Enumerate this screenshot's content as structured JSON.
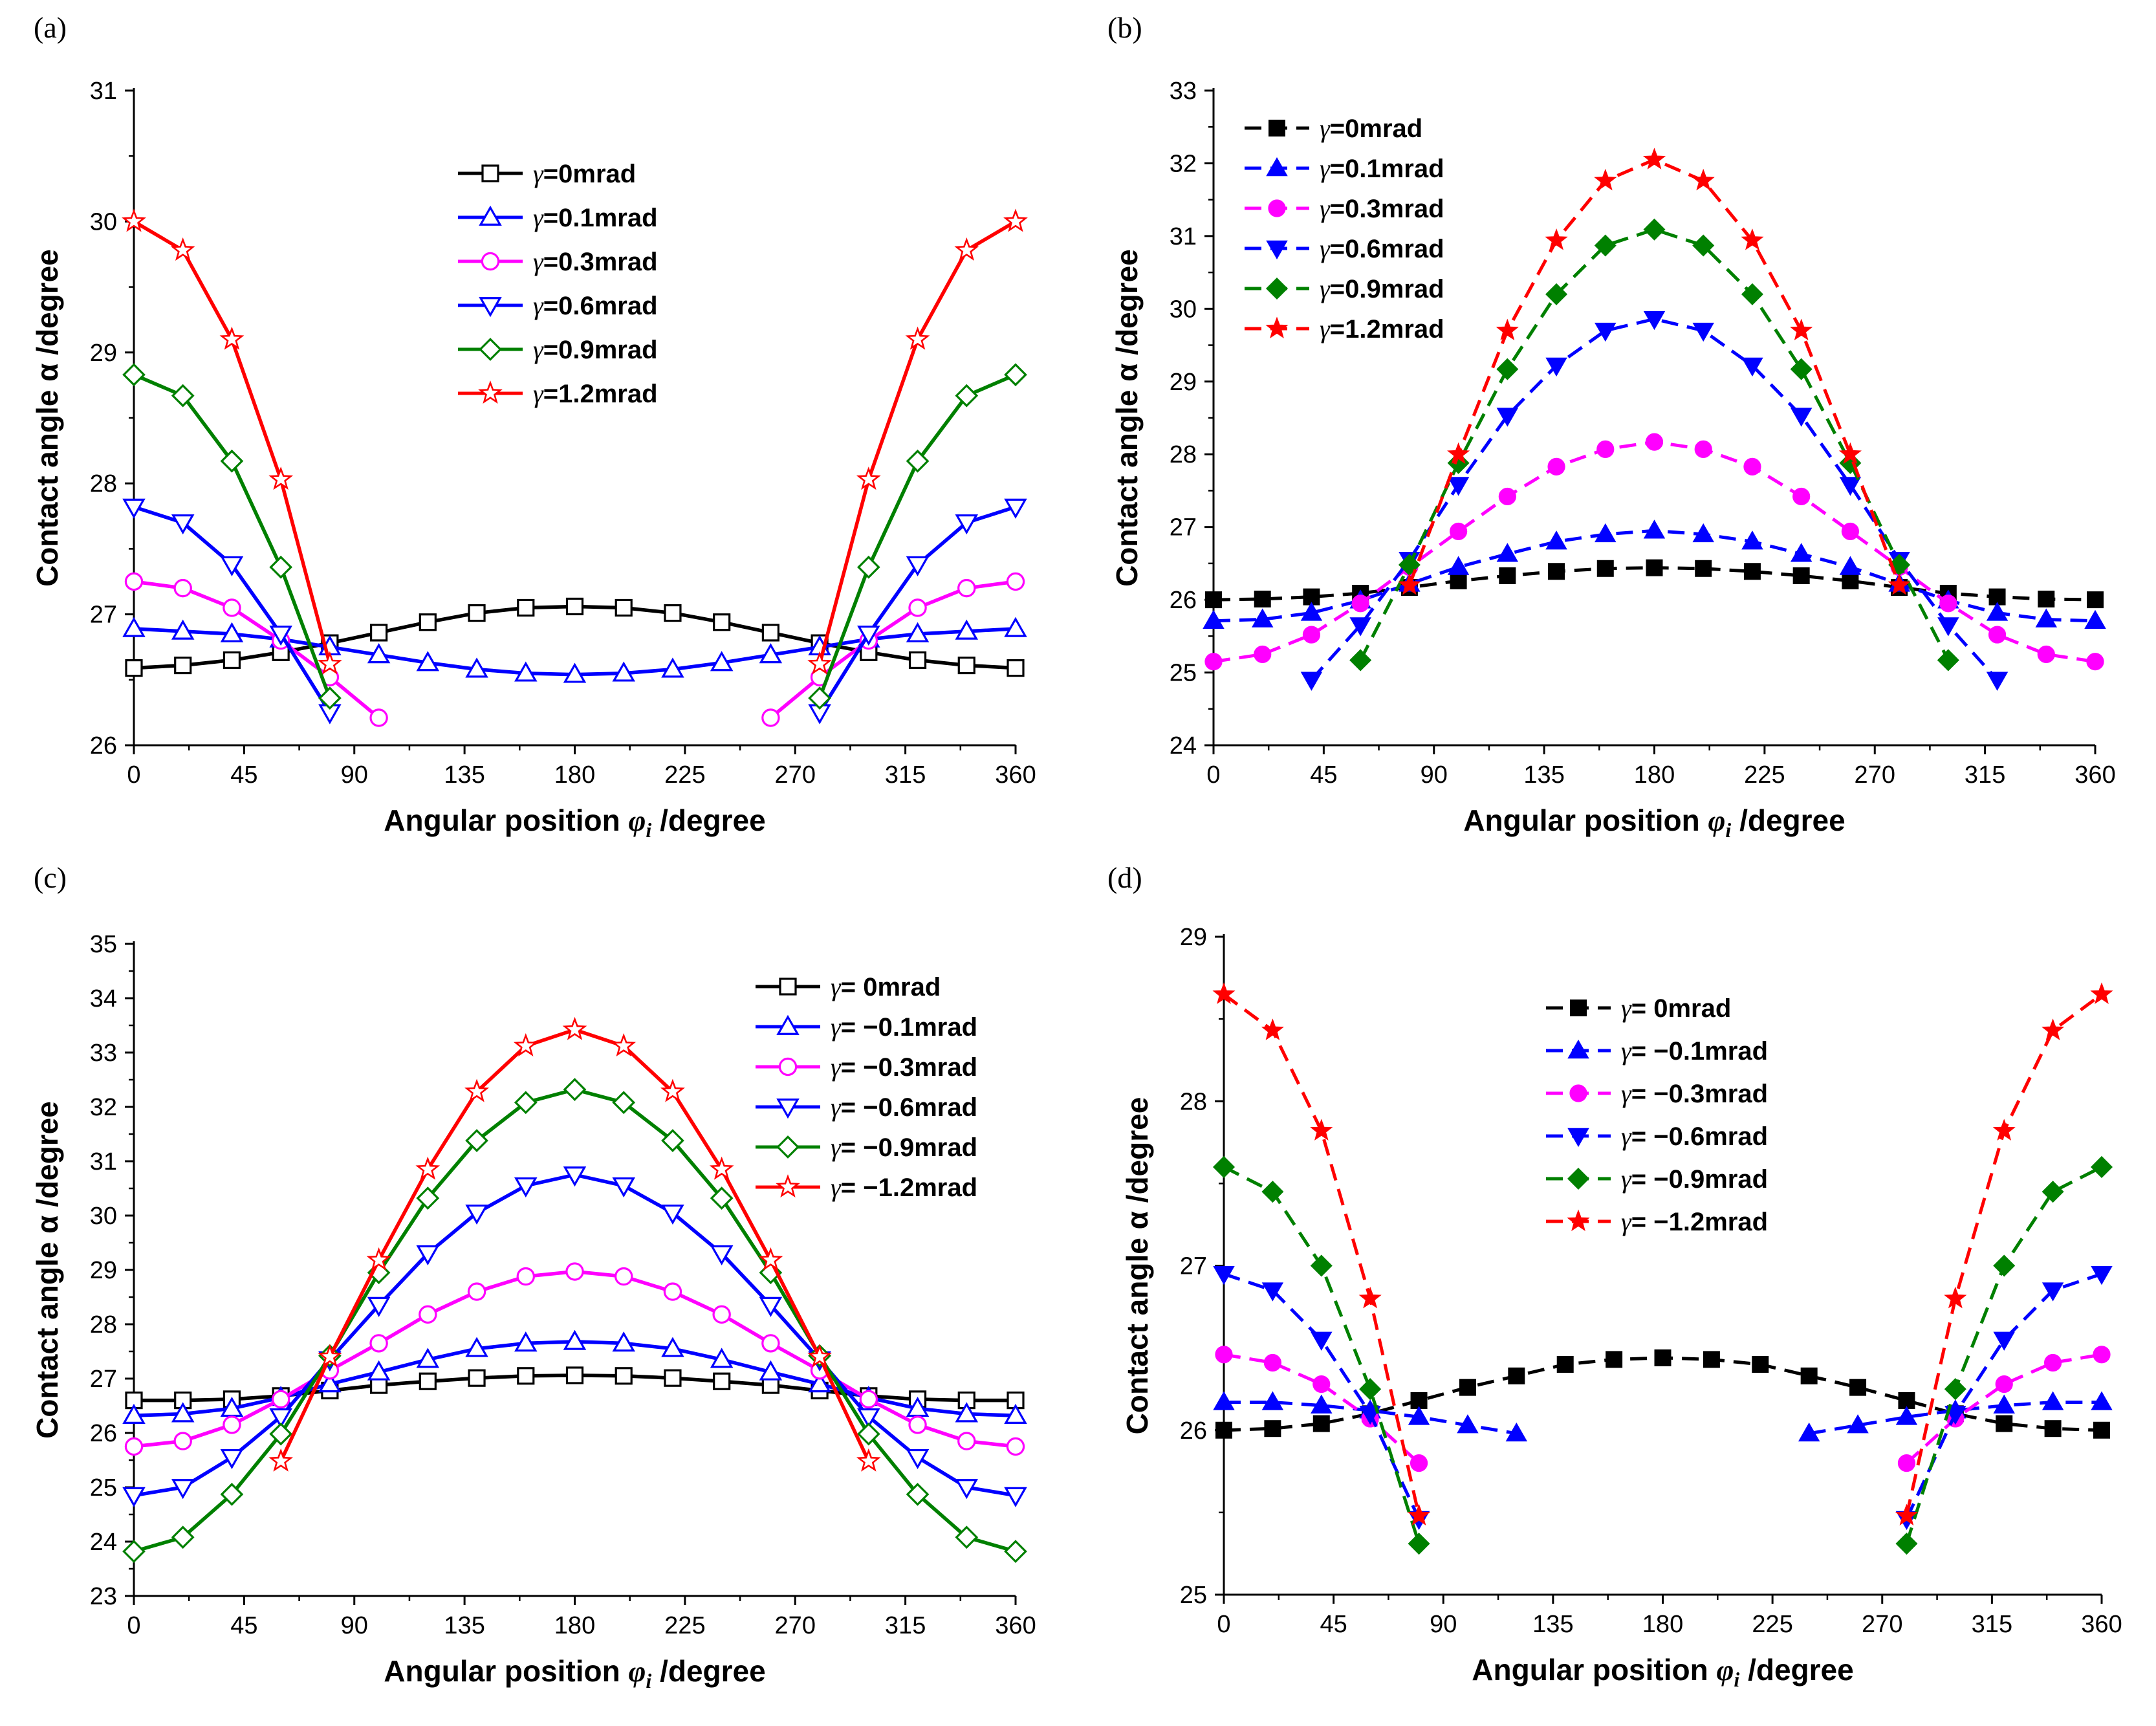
{
  "chart_data": [
    {
      "type": "line",
      "panel": "(a)",
      "line_style": "solid",
      "marker_fill": "hollow",
      "legend_position": "top-center",
      "xlabel": "Angular position φi /degree",
      "ylabel": "Contact angle α /degree",
      "xlim": [
        0,
        360
      ],
      "ylim": [
        26,
        31
      ],
      "xticks": [
        0,
        45,
        90,
        135,
        180,
        225,
        270,
        315,
        360
      ],
      "yticks": [
        26,
        27,
        28,
        29,
        30,
        31
      ],
      "series": [
        {
          "name": "γ=0mrad",
          "color": "#000000",
          "marker": "square",
          "x": [
            0,
            20,
            40,
            60,
            80,
            100,
            120,
            140,
            160,
            180,
            200,
            220,
            240,
            260,
            280,
            300,
            320,
            340,
            360
          ],
          "y": [
            26.59,
            26.61,
            26.65,
            26.71,
            26.78,
            26.86,
            26.94,
            27.01,
            27.05,
            27.06,
            27.05,
            27.01,
            26.94,
            26.86,
            26.78,
            26.71,
            26.65,
            26.61,
            26.59
          ]
        },
        {
          "name": "γ=0.1mrad",
          "color": "#0000ff",
          "marker": "triangle-up",
          "x": [
            0,
            20,
            40,
            60,
            80,
            100,
            120,
            140,
            160,
            180,
            200,
            220,
            240,
            260,
            280,
            300,
            320,
            340,
            360
          ],
          "y": [
            26.89,
            26.87,
            26.85,
            26.81,
            26.75,
            26.69,
            26.63,
            26.58,
            26.55,
            26.54,
            26.55,
            26.58,
            26.63,
            26.69,
            26.75,
            26.81,
            26.85,
            26.87,
            26.89
          ]
        },
        {
          "name": "γ=0.3mrad",
          "color": "#ff00ff",
          "marker": "circle",
          "x": [
            0,
            20,
            40,
            60,
            80,
            100,
            null,
            260,
            280,
            300,
            320,
            340,
            360
          ],
          "y": [
            27.25,
            27.2,
            27.05,
            26.8,
            26.52,
            26.21,
            null,
            26.21,
            26.52,
            26.8,
            27.05,
            27.2,
            27.25
          ]
        },
        {
          "name": "γ=0.6mrad",
          "color": "#0000ff",
          "marker": "triangle-down",
          "x": [
            0,
            20,
            40,
            60,
            80,
            null,
            280,
            300,
            320,
            340,
            360
          ],
          "y": [
            27.82,
            27.7,
            27.38,
            26.85,
            26.25,
            null,
            26.25,
            26.85,
            27.38,
            27.7,
            27.82
          ]
        },
        {
          "name": "γ=0.9mrad",
          "color": "#008000",
          "marker": "diamond",
          "x": [
            0,
            20,
            40,
            60,
            80,
            null,
            280,
            300,
            320,
            340,
            360
          ],
          "y": [
            28.83,
            28.67,
            28.17,
            27.36,
            26.36,
            null,
            26.36,
            27.36,
            28.17,
            28.67,
            28.83
          ]
        },
        {
          "name": "γ=1.2mrad",
          "color": "#ff0000",
          "marker": "star",
          "x": [
            0,
            20,
            40,
            60,
            80,
            null,
            280,
            300,
            320,
            340,
            360
          ],
          "y": [
            30.0,
            29.78,
            29.1,
            28.03,
            26.62,
            null,
            26.62,
            28.03,
            29.1,
            29.78,
            30.0
          ]
        }
      ]
    },
    {
      "type": "line",
      "panel": "(b)",
      "line_style": "dashed",
      "marker_fill": "solid",
      "legend_position": "top-left",
      "xlabel": "Angular position φi /degree",
      "ylabel": "Contact angle α /degree",
      "xlim": [
        0,
        360
      ],
      "ylim": [
        24,
        33
      ],
      "xticks": [
        0,
        45,
        90,
        135,
        180,
        225,
        270,
        315,
        360
      ],
      "yticks": [
        24,
        25,
        26,
        27,
        28,
        29,
        30,
        31,
        32,
        33
      ],
      "series": [
        {
          "name": "γ=0mrad",
          "color": "#000000",
          "marker": "square",
          "x": [
            0,
            20,
            40,
            60,
            80,
            100,
            120,
            140,
            160,
            180,
            200,
            220,
            240,
            260,
            280,
            300,
            320,
            340,
            360
          ],
          "y": [
            26.0,
            26.01,
            26.04,
            26.09,
            26.17,
            26.26,
            26.33,
            26.39,
            26.43,
            26.44,
            26.43,
            26.39,
            26.33,
            26.26,
            26.17,
            26.09,
            26.04,
            26.01,
            26.0
          ]
        },
        {
          "name": "γ=0.1mrad",
          "color": "#0000ff",
          "marker": "triangle-up",
          "x": [
            0,
            20,
            40,
            60,
            80,
            100,
            120,
            140,
            160,
            180,
            200,
            220,
            240,
            260,
            280,
            300,
            320,
            340,
            360
          ],
          "y": [
            25.71,
            25.73,
            25.82,
            25.99,
            26.22,
            26.45,
            26.63,
            26.8,
            26.9,
            26.95,
            26.9,
            26.8,
            26.63,
            26.45,
            26.22,
            25.99,
            25.82,
            25.73,
            25.71
          ]
        },
        {
          "name": "γ=0.3mrad",
          "color": "#ff00ff",
          "marker": "circle",
          "x": [
            0,
            20,
            40,
            60,
            80,
            100,
            120,
            140,
            160,
            180,
            200,
            220,
            240,
            260,
            280,
            300,
            320,
            340,
            360
          ],
          "y": [
            25.15,
            25.25,
            25.52,
            25.95,
            26.45,
            26.94,
            27.42,
            27.83,
            28.07,
            28.17,
            28.07,
            27.83,
            27.42,
            26.94,
            26.45,
            25.95,
            25.52,
            25.25,
            25.15
          ]
        },
        {
          "name": "γ=0.6mrad",
          "color": "#0000ff",
          "marker": "triangle-down",
          "x": [
            40,
            60,
            80,
            100,
            120,
            140,
            160,
            180,
            200,
            220,
            240,
            260,
            280,
            300,
            320
          ],
          "y": [
            24.9,
            25.65,
            26.55,
            27.58,
            28.53,
            29.22,
            29.7,
            29.86,
            29.7,
            29.22,
            28.53,
            27.58,
            26.55,
            25.65,
            24.9
          ]
        },
        {
          "name": "γ=0.9mrad",
          "color": "#008000",
          "marker": "diamond",
          "x": [
            60,
            80,
            100,
            120,
            140,
            160,
            180,
            200,
            220,
            240,
            260,
            280,
            300
          ],
          "y": [
            25.17,
            26.48,
            27.88,
            29.17,
            30.2,
            30.87,
            31.09,
            30.87,
            30.2,
            29.17,
            27.88,
            26.48,
            25.17
          ]
        },
        {
          "name": "γ=1.2mrad",
          "color": "#ff0000",
          "marker": "star",
          "x": [
            80,
            100,
            120,
            140,
            160,
            180,
            200,
            220,
            240,
            260,
            280
          ],
          "y": [
            26.2,
            28.0,
            29.7,
            30.94,
            31.76,
            32.05,
            31.76,
            30.94,
            29.7,
            28.0,
            26.2
          ]
        }
      ]
    },
    {
      "type": "line",
      "panel": "(c)",
      "line_style": "solid",
      "marker_fill": "hollow",
      "legend_position": "top-right",
      "xlabel": "Angular position φi /degree",
      "ylabel": "Contact angle α /degree",
      "xlim": [
        0,
        360
      ],
      "ylim": [
        23,
        35
      ],
      "xticks": [
        0,
        45,
        90,
        135,
        180,
        225,
        270,
        315,
        360
      ],
      "yticks": [
        23,
        24,
        25,
        26,
        27,
        28,
        29,
        30,
        31,
        32,
        33,
        34,
        35
      ],
      "series": [
        {
          "name": "γ= 0mrad",
          "color": "#000000",
          "marker": "square",
          "x": [
            0,
            20,
            40,
            60,
            80,
            100,
            120,
            140,
            160,
            180,
            200,
            220,
            240,
            260,
            280,
            300,
            320,
            340,
            360
          ],
          "y": [
            26.6,
            26.6,
            26.62,
            26.68,
            26.78,
            26.88,
            26.95,
            27.01,
            27.05,
            27.06,
            27.05,
            27.01,
            26.95,
            26.88,
            26.78,
            26.68,
            26.62,
            26.6,
            26.6
          ]
        },
        {
          "name": "γ= −0.1mrad",
          "color": "#0000ff",
          "marker": "triangle-up",
          "x": [
            0,
            20,
            40,
            60,
            80,
            100,
            120,
            140,
            160,
            180,
            200,
            220,
            240,
            260,
            280,
            300,
            320,
            340,
            360
          ],
          "y": [
            26.32,
            26.35,
            26.45,
            26.65,
            26.9,
            27.12,
            27.35,
            27.55,
            27.65,
            27.68,
            27.65,
            27.55,
            27.35,
            27.12,
            26.9,
            26.65,
            26.45,
            26.35,
            26.32
          ]
        },
        {
          "name": "γ= −0.3mrad",
          "color": "#ff00ff",
          "marker": "circle",
          "x": [
            0,
            20,
            40,
            60,
            80,
            100,
            120,
            140,
            160,
            180,
            200,
            220,
            240,
            260,
            280,
            300,
            320,
            340,
            360
          ],
          "y": [
            25.75,
            25.85,
            26.15,
            26.62,
            27.15,
            27.65,
            28.18,
            28.6,
            28.88,
            28.97,
            28.88,
            28.6,
            28.18,
            27.65,
            27.15,
            26.62,
            26.15,
            25.85,
            25.75
          ]
        },
        {
          "name": "γ= −0.6mrad",
          "color": "#0000ff",
          "marker": "triangle-down",
          "x": [
            0,
            20,
            40,
            60,
            80,
            100,
            120,
            140,
            160,
            180,
            200,
            220,
            240,
            260,
            280,
            300,
            320,
            340,
            360
          ],
          "y": [
            24.85,
            25.0,
            25.55,
            26.3,
            27.35,
            28.35,
            29.3,
            30.05,
            30.55,
            30.75,
            30.55,
            30.05,
            29.3,
            28.35,
            27.35,
            26.3,
            25.55,
            25.0,
            24.85
          ]
        },
        {
          "name": "γ= −0.9mrad",
          "color": "#008000",
          "marker": "diamond",
          "x": [
            0,
            20,
            40,
            60,
            80,
            100,
            120,
            140,
            160,
            180,
            200,
            220,
            240,
            260,
            280,
            300,
            320,
            340,
            360
          ],
          "y": [
            23.82,
            24.08,
            24.87,
            25.98,
            27.42,
            28.95,
            30.32,
            31.38,
            32.08,
            32.32,
            32.08,
            31.38,
            30.32,
            28.95,
            27.42,
            25.98,
            24.87,
            24.08,
            23.82
          ]
        },
        {
          "name": "γ= −1.2mrad",
          "color": "#ff0000",
          "marker": "star",
          "x": [
            60,
            80,
            100,
            120,
            140,
            160,
            180,
            200,
            220,
            240,
            260,
            280,
            300
          ],
          "y": [
            25.48,
            27.4,
            29.18,
            30.85,
            32.28,
            33.12,
            33.42,
            33.12,
            32.28,
            30.85,
            29.18,
            27.4,
            25.48
          ]
        }
      ]
    },
    {
      "type": "line",
      "panel": "(d)",
      "line_style": "dashed",
      "marker_fill": "solid",
      "legend_position": "top-center",
      "xlabel": "Angular position φi /degree",
      "ylabel": "Contact angle α /degree",
      "xlim": [
        0,
        360
      ],
      "ylim": [
        25,
        29
      ],
      "xticks": [
        0,
        45,
        90,
        135,
        180,
        225,
        270,
        315,
        360
      ],
      "yticks": [
        25,
        26,
        27,
        28,
        29
      ],
      "series": [
        {
          "name": "γ= 0mrad",
          "color": "#000000",
          "marker": "square",
          "x": [
            0,
            20,
            40,
            60,
            80,
            100,
            120,
            140,
            160,
            180,
            200,
            220,
            240,
            260,
            280,
            300,
            320,
            340,
            360
          ],
          "y": [
            26.0,
            26.01,
            26.04,
            26.1,
            26.18,
            26.26,
            26.33,
            26.4,
            26.43,
            26.44,
            26.43,
            26.4,
            26.33,
            26.26,
            26.18,
            26.1,
            26.04,
            26.01,
            26.0
          ]
        },
        {
          "name": "γ= −0.1mrad",
          "color": "#0000ff",
          "marker": "triangle-up",
          "x": [
            0,
            20,
            40,
            60,
            80,
            100,
            120,
            null,
            240,
            260,
            280,
            300,
            320,
            340,
            360
          ],
          "y": [
            26.17,
            26.17,
            26.15,
            26.12,
            26.08,
            26.03,
            25.98,
            null,
            25.98,
            26.03,
            26.08,
            26.12,
            26.15,
            26.17,
            26.17
          ]
        },
        {
          "name": "γ= −0.3mrad",
          "color": "#ff00ff",
          "marker": "circle",
          "x": [
            0,
            20,
            40,
            60,
            80,
            null,
            280,
            300,
            320,
            340,
            360
          ],
          "y": [
            26.46,
            26.41,
            26.28,
            26.07,
            25.8,
            null,
            25.8,
            26.07,
            26.28,
            26.41,
            26.46
          ]
        },
        {
          "name": "γ= −0.6mrad",
          "color": "#0000ff",
          "marker": "triangle-down",
          "x": [
            0,
            20,
            40,
            60,
            80,
            null,
            280,
            300,
            320,
            340,
            360
          ],
          "y": [
            26.95,
            26.85,
            26.55,
            26.1,
            25.46,
            null,
            25.46,
            26.1,
            26.55,
            26.85,
            26.95
          ]
        },
        {
          "name": "γ= −0.9mrad",
          "color": "#008000",
          "marker": "diamond",
          "x": [
            0,
            20,
            40,
            60,
            80,
            null,
            280,
            300,
            320,
            340,
            360
          ],
          "y": [
            27.6,
            27.45,
            27.0,
            26.25,
            25.31,
            null,
            25.31,
            26.25,
            27.0,
            27.45,
            27.6
          ]
        },
        {
          "name": "γ= −1.2mrad",
          "color": "#ff0000",
          "marker": "star",
          "x": [
            0,
            20,
            40,
            60,
            80,
            null,
            280,
            300,
            320,
            340,
            360
          ],
          "y": [
            28.65,
            28.43,
            27.82,
            26.8,
            25.48,
            null,
            25.48,
            26.8,
            27.82,
            28.43,
            28.65
          ]
        }
      ]
    }
  ]
}
